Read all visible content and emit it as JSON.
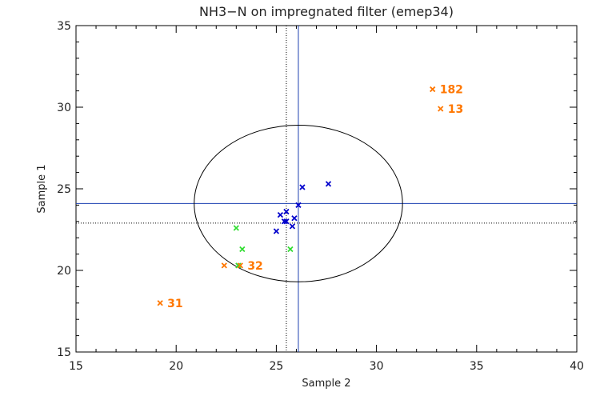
{
  "chart_data": {
    "type": "scatter",
    "title": "NH3−N on impregnated filter (emep34)",
    "xlabel": "Sample 2",
    "ylabel": "Sample 1",
    "xlim": [
      15,
      40
    ],
    "ylim": [
      15,
      35
    ],
    "xticks": [
      "15",
      "20",
      "25",
      "30",
      "35",
      "40"
    ],
    "yticks": [
      "15",
      "20",
      "25",
      "30",
      "35"
    ],
    "reference_lines": {
      "solid_color": "#1a3fb0",
      "solid_x": 26.1,
      "solid_y": 24.1,
      "dotted_color": "#000000",
      "dotted_x": 25.5,
      "dotted_y": 22.9
    },
    "ellipse": {
      "center": [
        26.1,
        24.1
      ],
      "semi_axis_x": 5.2,
      "semi_axis_y": 4.8,
      "color": "#000000"
    },
    "series": [
      {
        "color": "#0000cc",
        "points": [
          {
            "x": 26.3,
            "y": 25.1
          },
          {
            "x": 27.6,
            "y": 25.3
          },
          {
            "x": 26.1,
            "y": 24.0
          },
          {
            "x": 25.2,
            "y": 23.4
          },
          {
            "x": 25.5,
            "y": 23.6
          },
          {
            "x": 25.4,
            "y": 23.0
          },
          {
            "x": 25.5,
            "y": 23.0
          },
          {
            "x": 25.9,
            "y": 23.2
          },
          {
            "x": 25.8,
            "y": 22.7
          },
          {
            "x": 25.0,
            "y": 22.4
          }
        ]
      },
      {
        "color": "#33dd33",
        "points": [
          {
            "x": 23.0,
            "y": 22.6
          },
          {
            "x": 23.3,
            "y": 21.3
          },
          {
            "x": 25.7,
            "y": 21.3
          },
          {
            "x": 23.1,
            "y": 20.3
          }
        ]
      },
      {
        "color": "#ff7700",
        "points": [
          {
            "x": 32.8,
            "y": 31.1,
            "label": "182"
          },
          {
            "x": 33.2,
            "y": 29.9,
            "label": "13"
          },
          {
            "x": 22.4,
            "y": 20.3,
            "label": ""
          },
          {
            "x": 23.2,
            "y": 20.3,
            "label": "32"
          },
          {
            "x": 19.2,
            "y": 18.0,
            "label": "31"
          }
        ]
      }
    ]
  }
}
